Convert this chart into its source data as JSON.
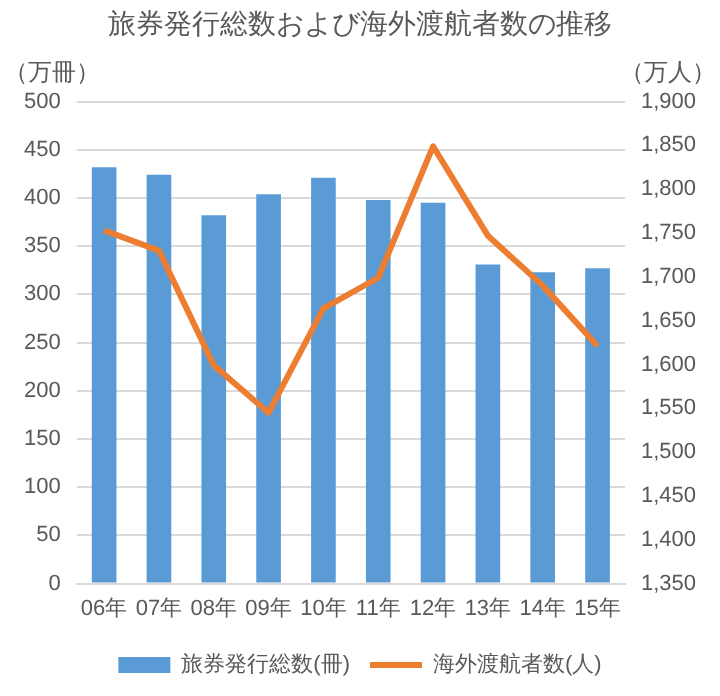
{
  "chart_data": {
    "type": "bar",
    "title": "旅券発行総数および海外渡航者数の推移",
    "ylabel": "（万冊）",
    "y2label": "（万人）",
    "categories": [
      "06年",
      "07年",
      "08年",
      "09年",
      "10年",
      "11年",
      "12年",
      "13年",
      "14年",
      "15年"
    ],
    "series": [
      {
        "name": "旅券発行総数(冊)",
        "color": "#5b9bd5",
        "values": [
          432,
          424,
          382,
          404,
          421,
          398,
          395,
          331,
          323,
          327
        ]
      },
      {
        "name": "海外渡航者数(人)",
        "type": "line",
        "axis": "y2",
        "color": "#ed7d31",
        "values": [
          1753,
          1730,
          1599,
          1545,
          1664,
          1699,
          1849,
          1747,
          1690,
          1621
        ]
      }
    ],
    "ylim": [
      0,
      500
    ],
    "yticks": [
      0,
      50,
      100,
      150,
      200,
      250,
      300,
      350,
      400,
      450,
      500
    ],
    "y2lim": [
      1350,
      1900
    ],
    "y2ticks": [
      {
        "value": 1350,
        "label": "1,350"
      },
      {
        "value": 1400,
        "label": "1,400"
      },
      {
        "value": 1450,
        "label": "1,450"
      },
      {
        "value": 1500,
        "label": "1,500"
      },
      {
        "value": 1550,
        "label": "1,550"
      },
      {
        "value": 1600,
        "label": "1,600"
      },
      {
        "value": 1650,
        "label": "1,650"
      },
      {
        "value": 1700,
        "label": "1,700"
      },
      {
        "value": 1750,
        "label": "1,750"
      },
      {
        "value": 1800,
        "label": "1,800"
      },
      {
        "value": 1850,
        "label": "1,850"
      },
      {
        "value": 1900,
        "label": "1,900"
      }
    ],
    "grid": "y",
    "legend": "bottom",
    "marker": "none",
    "line_style": "solid"
  }
}
